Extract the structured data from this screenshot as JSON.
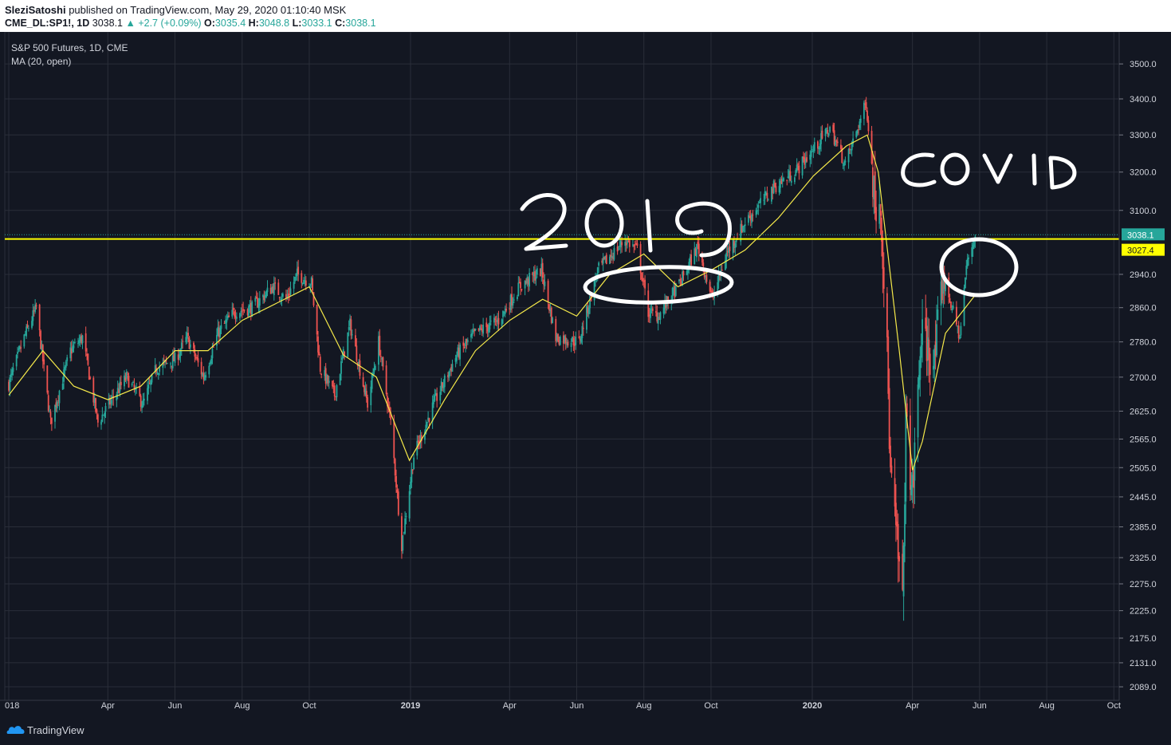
{
  "header": {
    "author": "SleziSatoshi",
    "published": "published on TradingView.com, May 29, 2020 01:10:40 MSK",
    "symbol": "CME_DL:SP1!, 1D",
    "last": "3038.1",
    "change": "▲ +2.7 (+0.09%)",
    "o_label": "O:",
    "o_value": "3035.4",
    "h_label": "H:",
    "h_value": "3048.8",
    "l_label": "L:",
    "l_value": "3033.1",
    "c_label": "C:",
    "c_value": "3038.1"
  },
  "legend": {
    "title": "S&P 500 Futures, 1D, CME",
    "indicator": "MA (20, open)"
  },
  "footer": {
    "brand": "TradingView"
  },
  "colors": {
    "background": "#131722",
    "grid": "#2a2e39",
    "up": "#26a69a",
    "down": "#ef5350",
    "ma": "#f5e94a",
    "hline": "#ffff00",
    "annotation": "#ffffff"
  },
  "annotations": {
    "left": "2019",
    "right": "COVID"
  },
  "chart_data": {
    "type": "candlestick",
    "title": "S&P 500 Futures, 1D, CME",
    "y_ticks": [
      2089.0,
      2131.0,
      2175.0,
      2225.0,
      2275.0,
      2325.0,
      2385.0,
      2445.0,
      2505.0,
      2565.0,
      2625.0,
      2700.0,
      2780.0,
      2860.0,
      2940.0,
      3100.0,
      3200.0,
      3300.0,
      3400.0,
      3500.0
    ],
    "y_axis_scale": "log",
    "x_ticks": [
      "018",
      "Apr",
      "Jun",
      "Aug",
      "Oct",
      "2019",
      "Apr",
      "Jun",
      "Aug",
      "Oct",
      "2020",
      "Apr",
      "Jun",
      "Aug",
      "Oct"
    ],
    "last_price": 3038.1,
    "horizontal_line": 3027.4,
    "price_labels": [
      "3038.1",
      "3027.4"
    ],
    "series": [
      {
        "name": "S&P 500 Futures (approx. closes)",
        "x": [
          "2018-01-01",
          "2018-01-15",
          "2018-01-26",
          "2018-02-08",
          "2018-02-26",
          "2018-03-09",
          "2018-03-23",
          "2018-04-02",
          "2018-04-18",
          "2018-05-03",
          "2018-05-15",
          "2018-06-01",
          "2018-06-12",
          "2018-06-27",
          "2018-07-10",
          "2018-07-25",
          "2018-08-10",
          "2018-08-29",
          "2018-09-10",
          "2018-09-20",
          "2018-10-03",
          "2018-10-11",
          "2018-10-24",
          "2018-11-07",
          "2018-11-23",
          "2018-12-03",
          "2018-12-14",
          "2018-12-24",
          "2019-01-04",
          "2019-01-22",
          "2019-02-12",
          "2019-03-01",
          "2019-03-22",
          "2019-04-10",
          "2019-04-30",
          "2019-05-13",
          "2019-06-03",
          "2019-06-20",
          "2019-07-15",
          "2019-07-26",
          "2019-08-05",
          "2019-08-14",
          "2019-09-03",
          "2019-09-19",
          "2019-10-02",
          "2019-10-15",
          "2019-11-01",
          "2019-11-27",
          "2019-12-16",
          "2020-01-02",
          "2020-01-17",
          "2020-01-31",
          "2020-02-19",
          "2020-02-27",
          "2020-03-03",
          "2020-03-09",
          "2020-03-12",
          "2020-03-16",
          "2020-03-23",
          "2020-03-26",
          "2020-04-01",
          "2020-04-09",
          "2020-04-21",
          "2020-04-29",
          "2020-05-14",
          "2020-05-20",
          "2020-05-28"
        ],
        "close": [
          2685,
          2790,
          2860,
          2600,
          2760,
          2790,
          2600,
          2640,
          2700,
          2640,
          2720,
          2740,
          2790,
          2700,
          2800,
          2850,
          2860,
          2910,
          2880,
          2940,
          2920,
          2720,
          2660,
          2820,
          2640,
          2780,
          2600,
          2350,
          2530,
          2640,
          2750,
          2800,
          2830,
          2910,
          2950,
          2790,
          2780,
          2950,
          3025,
          3000,
          2850,
          2840,
          2920,
          3010,
          2880,
          2990,
          3070,
          3160,
          3200,
          3260,
          3320,
          3220,
          3390,
          3120,
          3130,
          2750,
          2490,
          2400,
          2230,
          2600,
          2450,
          2800,
          2730,
          2940,
          2790,
          2960,
          3038
        ]
      },
      {
        "name": "MA (20, open)",
        "x": [
          "2018-01-01",
          "2018-02-01",
          "2018-03-01",
          "2018-04-01",
          "2018-05-01",
          "2018-06-01",
          "2018-07-01",
          "2018-08-01",
          "2018-09-01",
          "2018-10-01",
          "2018-11-01",
          "2018-12-01",
          "2018-12-31",
          "2019-02-01",
          "2019-03-01",
          "2019-04-01",
          "2019-05-01",
          "2019-06-01",
          "2019-07-01",
          "2019-08-01",
          "2019-09-01",
          "2019-10-01",
          "2019-11-01",
          "2019-12-01",
          "2020-01-02",
          "2020-02-01",
          "2020-02-20",
          "2020-03-01",
          "2020-03-20",
          "2020-04-01",
          "2020-04-10",
          "2020-05-01",
          "2020-05-28"
        ],
        "values": [
          2660,
          2760,
          2680,
          2650,
          2680,
          2760,
          2760,
          2830,
          2870,
          2910,
          2750,
          2700,
          2520,
          2650,
          2760,
          2830,
          2880,
          2840,
          2940,
          2990,
          2910,
          2950,
          3000,
          3080,
          3190,
          3270,
          3300,
          3200,
          2760,
          2500,
          2560,
          2800,
          2890
        ]
      }
    ]
  }
}
